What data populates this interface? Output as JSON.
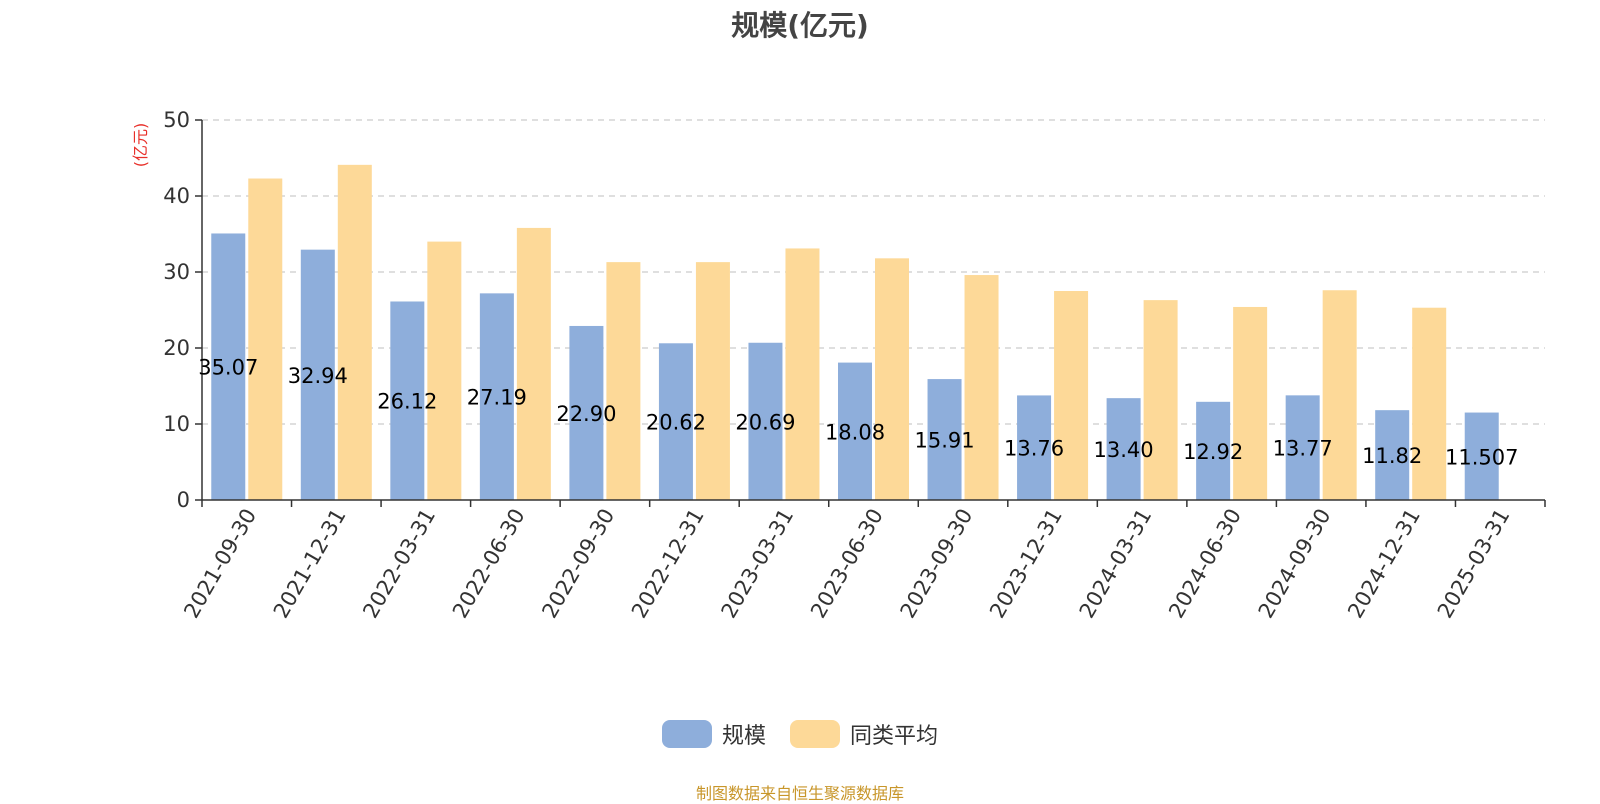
{
  "chart_data": {
    "type": "bar",
    "title": "规模(亿元)",
    "ylabel": "(亿元)",
    "ylim": [
      0,
      50
    ],
    "yticks": [
      0,
      10,
      20,
      30,
      40,
      50
    ],
    "grid": true,
    "legend_position": "bottom",
    "categories": [
      "2021-09-30",
      "2021-12-31",
      "2022-03-31",
      "2022-06-30",
      "2022-09-30",
      "2022-12-31",
      "2023-03-31",
      "2023-06-30",
      "2023-09-30",
      "2023-12-31",
      "2024-03-31",
      "2024-06-30",
      "2024-09-30",
      "2024-12-31",
      "2025-03-31"
    ],
    "series": [
      {
        "name": "规模",
        "color": "#8eaedb",
        "values": [
          35.07,
          32.94,
          26.12,
          27.19,
          22.9,
          20.62,
          20.69,
          18.08,
          15.91,
          13.76,
          13.4,
          12.92,
          13.77,
          11.82,
          11.507
        ],
        "labels": [
          "35.07",
          "32.94",
          "26.12",
          "27.19",
          "22.90",
          "20.62",
          "20.69",
          "18.08",
          "15.91",
          "13.76",
          "13.40",
          "12.92",
          "13.77",
          "11.82",
          "11.507"
        ]
      },
      {
        "name": "同类平均",
        "color": "#fdd998",
        "values": [
          42.3,
          44.1,
          34.0,
          35.8,
          31.3,
          31.3,
          33.1,
          31.8,
          29.6,
          27.5,
          26.3,
          25.4,
          27.6,
          25.3,
          null
        ]
      }
    ]
  },
  "footer": {
    "source": "制图数据来自恒生聚源数据库"
  },
  "colors": {
    "ylabel": "#e8302a",
    "grid": "#cccccc",
    "axis": "#333333",
    "text": "#333333"
  }
}
